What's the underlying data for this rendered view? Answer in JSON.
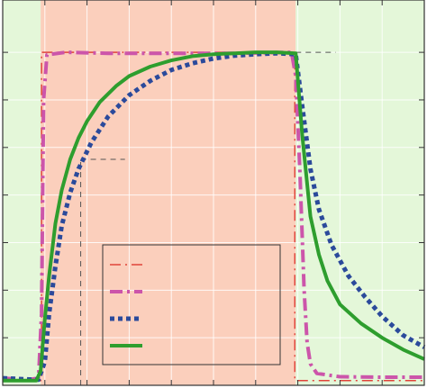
{
  "chart_data": {
    "type": "line",
    "title": "",
    "xlabel": "",
    "ylabel": "",
    "xlim": [
      0,
      10
    ],
    "ylim": [
      0,
      8.1
    ],
    "x_gridlines": [
      1,
      2,
      3,
      4,
      5,
      6,
      7,
      8,
      9
    ],
    "y_gridlines": [
      1,
      2,
      3,
      4,
      5,
      6,
      7
    ],
    "grid": true,
    "regions": [
      {
        "x0": 0.0,
        "x1": 0.9,
        "color": "#e4f7d9"
      },
      {
        "x0": 0.9,
        "x1": 6.95,
        "color": "#fbcfbc"
      },
      {
        "x0": 6.95,
        "x1": 10.0,
        "color": "#e4f7d9"
      }
    ],
    "annotations": [
      {
        "kind": "hline-dashed",
        "y": 7.0,
        "x0": 6.95,
        "x1": 7.9,
        "color": "#555555"
      },
      {
        "kind": "hline-dashed",
        "y": 4.75,
        "x0": 1.85,
        "x1": 2.9,
        "color": "#555555"
      },
      {
        "kind": "vline-dashed",
        "x": 1.85,
        "y0": 0.0,
        "y1": 4.75,
        "color": "#555555"
      }
    ],
    "legend": {
      "position": "lower-center",
      "entries": [
        "",
        "",
        "",
        ""
      ]
    },
    "series": [
      {
        "color": "#e0443a",
        "style": "dashdot-thin",
        "width": 1.5,
        "x": [
          0,
          0.92,
          0.92,
          6.93,
          6.93,
          10
        ],
        "y": [
          0.1,
          0.1,
          7.0,
          7.0,
          0.1,
          0.1
        ]
      },
      {
        "color": "#cc55aa",
        "style": "dashdot",
        "width": 4,
        "x": [
          0,
          0.6,
          0.85,
          0.92,
          0.97,
          1.05,
          1.5,
          2.5,
          4.0,
          5.5,
          6.85,
          6.95,
          7.05,
          7.15,
          7.22,
          7.3,
          7.45,
          8.0,
          9.0,
          10.0
        ],
        "y": [
          0.15,
          0.12,
          0.15,
          1.5,
          6.0,
          6.95,
          7.0,
          6.98,
          6.98,
          6.98,
          7.0,
          6.5,
          4.5,
          2.0,
          0.9,
          0.45,
          0.25,
          0.18,
          0.17,
          0.17
        ]
      },
      {
        "color": "#2b4a9b",
        "style": "dotted",
        "width": 5,
        "x": [
          0,
          0.7,
          0.85,
          1.0,
          1.1,
          1.25,
          1.4,
          1.6,
          1.8,
          2.1,
          2.5,
          3.0,
          3.5,
          4.0,
          4.5,
          5.0,
          5.5,
          6.0,
          6.5,
          6.95,
          7.1,
          7.3,
          7.5,
          7.8,
          8.2,
          8.6,
          9.0,
          9.5,
          10.0
        ],
        "y": [
          0.15,
          0.12,
          0.12,
          0.5,
          1.5,
          2.5,
          3.35,
          4.05,
          4.55,
          5.1,
          5.65,
          6.1,
          6.4,
          6.63,
          6.77,
          6.87,
          6.93,
          6.96,
          6.98,
          6.96,
          5.9,
          4.55,
          3.7,
          2.95,
          2.3,
          1.85,
          1.45,
          1.05,
          0.8
        ]
      },
      {
        "color": "#2e9e2e",
        "style": "solid",
        "width": 4,
        "x": [
          0,
          0.8,
          0.9,
          1.0,
          1.1,
          1.25,
          1.4,
          1.6,
          1.8,
          2.0,
          2.3,
          2.7,
          3.0,
          3.5,
          4.0,
          4.5,
          5.0,
          5.5,
          6.0,
          6.5,
          6.95,
          7.1,
          7.3,
          7.5,
          7.7,
          8.0,
          8.5,
          9.0,
          9.5,
          10.0
        ],
        "y": [
          0.1,
          0.1,
          0.3,
          1.4,
          2.3,
          3.4,
          4.1,
          4.75,
          5.2,
          5.55,
          5.95,
          6.3,
          6.5,
          6.7,
          6.83,
          6.92,
          6.96,
          6.98,
          7.0,
          7.0,
          6.98,
          5.3,
          3.55,
          2.75,
          2.2,
          1.7,
          1.3,
          1.0,
          0.75,
          0.55
        ]
      }
    ]
  }
}
